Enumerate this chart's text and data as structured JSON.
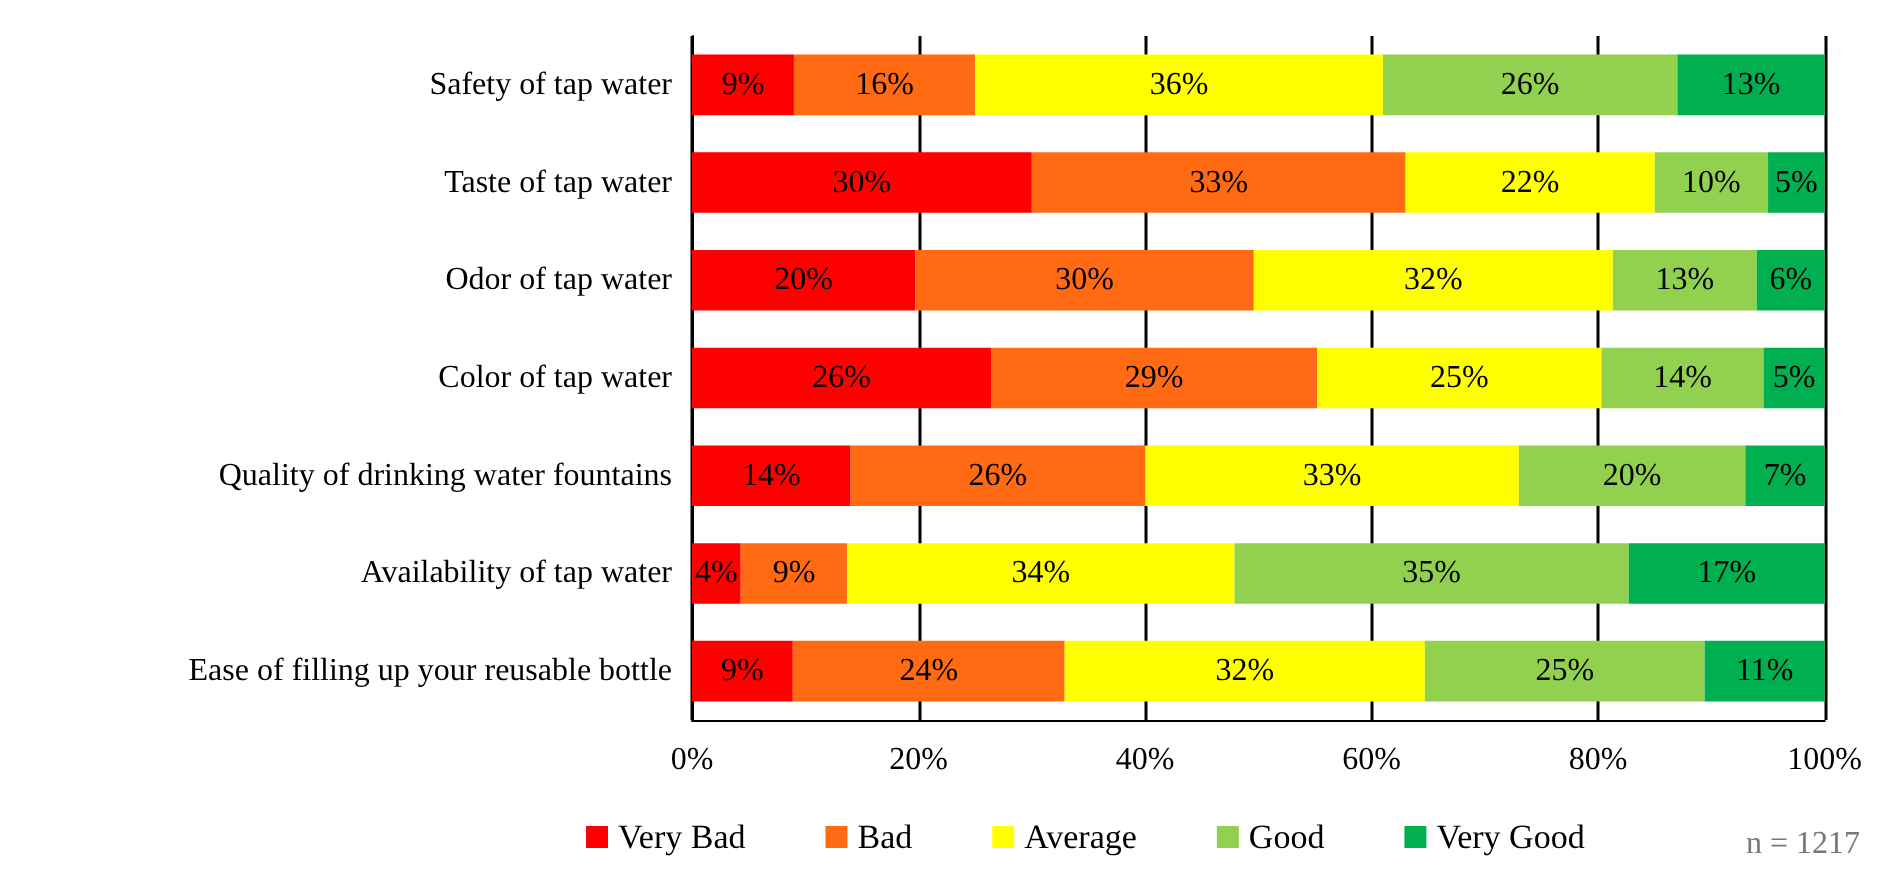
{
  "chart_data": {
    "type": "bar",
    "orientation": "horizontal",
    "stacked": true,
    "categories": [
      "Safety of tap water",
      "Taste of tap water",
      "Odor of tap water",
      "Color of tap water",
      "Quality of drinking water fountains",
      "Availability of tap water",
      "Ease of filling up your reusable bottle"
    ],
    "series": [
      {
        "name": "Very Bad",
        "color": "#ff0000",
        "values": [
          9,
          30,
          19.7,
          26.4,
          14,
          4.3,
          8.9
        ],
        "value_labels": [
          "9%",
          "30%",
          "20%",
          "26%",
          "14%",
          "4%",
          "9%"
        ]
      },
      {
        "name": "Bad",
        "color": "#ff6a13",
        "values": [
          16,
          33,
          29.9,
          28.8,
          26,
          9.4,
          24.0
        ],
        "value_labels": [
          "16%",
          "33%",
          "30%",
          "29%",
          "26%",
          "9%",
          "24%"
        ]
      },
      {
        "name": "Average",
        "color": "#ffff00",
        "values": [
          36,
          22,
          31.7,
          25.1,
          33,
          34.2,
          31.8
        ],
        "value_labels": [
          "36%",
          "22%",
          "32%",
          "25%",
          "33%",
          "34%",
          "32%"
        ]
      },
      {
        "name": "Good",
        "color": "#92d050",
        "values": [
          26,
          10,
          12.7,
          14.3,
          20,
          34.8,
          24.7
        ],
        "value_labels": [
          "26%",
          "10%",
          "13%",
          "14%",
          "20%",
          "35%",
          "25%"
        ]
      },
      {
        "name": "Very Good",
        "color": "#00b050",
        "values": [
          13,
          5,
          6.0,
          5.4,
          7,
          17.3,
          10.6
        ],
        "value_labels": [
          "13%",
          "5%",
          "6%",
          "5%",
          "7%",
          "17%",
          "11%"
        ]
      }
    ],
    "xlim": [
      0,
      100
    ],
    "xticks": [
      {
        "value": 0,
        "label": "0%"
      },
      {
        "value": 20,
        "label": "20%"
      },
      {
        "value": 40,
        "label": "40%"
      },
      {
        "value": 60,
        "label": "60%"
      },
      {
        "value": 80,
        "label": "80%"
      },
      {
        "value": 100,
        "label": "100%"
      }
    ],
    "grid": "x",
    "legend": "bottom",
    "annotations": [
      "n = 1217"
    ]
  }
}
